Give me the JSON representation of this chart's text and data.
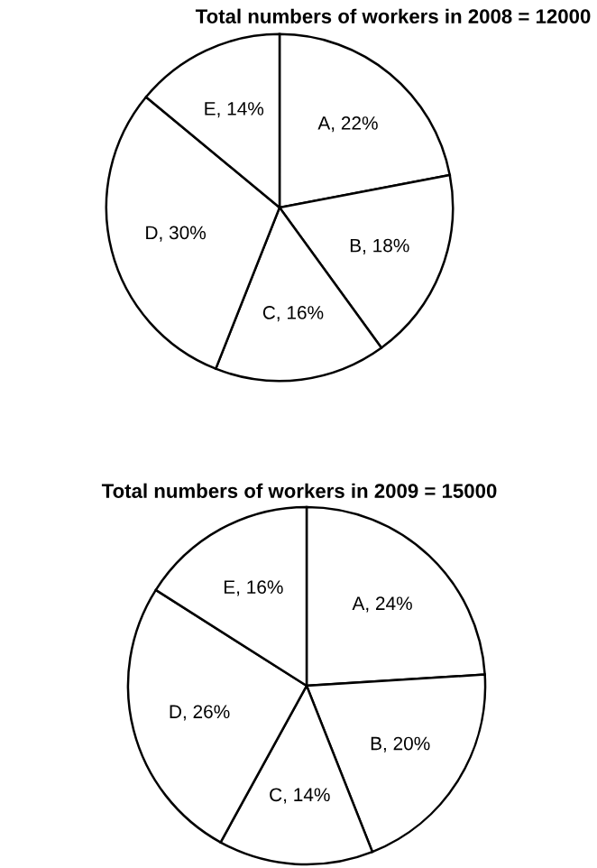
{
  "chart_data": [
    {
      "type": "pie",
      "title": "Total numbers of workers in 2008 = 12000",
      "categories": [
        "A",
        "B",
        "C",
        "D",
        "E"
      ],
      "values": [
        22,
        18,
        16,
        30,
        14
      ],
      "colors": [
        "#ffffff",
        "#ffffff",
        "#ffffff",
        "#ffffff",
        "#ffffff"
      ],
      "value_labels": [
        "22%",
        "18%",
        "16%",
        "30%",
        "14%"
      ]
    },
    {
      "type": "pie",
      "title": "Total numbers of workers in 2009 = 15000",
      "categories": [
        "A",
        "B",
        "C",
        "D",
        "E"
      ],
      "values": [
        24,
        20,
        14,
        26,
        16
      ],
      "colors": [
        "#ffffff",
        "#ffffff",
        "#ffffff",
        "#ffffff",
        "#ffffff"
      ],
      "value_labels": [
        "24%",
        "20%",
        "14%",
        "26%",
        "16%"
      ]
    }
  ]
}
